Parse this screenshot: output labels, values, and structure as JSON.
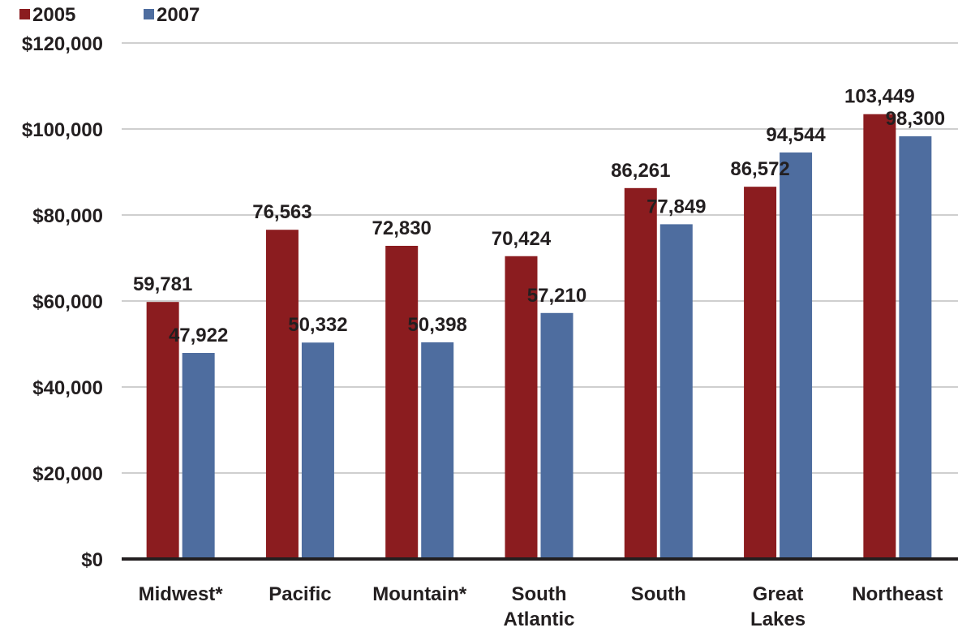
{
  "chart_data": {
    "type": "bar",
    "title": "",
    "xlabel": "",
    "ylabel": "",
    "categories": [
      [
        "Midwest*"
      ],
      [
        "Pacific"
      ],
      [
        "Mountain*"
      ],
      [
        "South",
        "Atlantic"
      ],
      [
        "South"
      ],
      [
        "Great",
        "Lakes"
      ],
      [
        "Northeast"
      ]
    ],
    "series": [
      {
        "name": "2005",
        "color": "#8b1c1f",
        "values": [
          59781,
          76563,
          72830,
          70424,
          86261,
          86572,
          103449
        ],
        "labels": [
          "59,781",
          "76,563",
          "72,830",
          "70,424",
          "86,261",
          "86,572",
          "103,449"
        ]
      },
      {
        "name": "2007",
        "color": "#4e6d9f",
        "values": [
          47922,
          50332,
          50398,
          57210,
          77849,
          94544,
          98300
        ],
        "labels": [
          "47,922",
          "50,332",
          "50,398",
          "57,210",
          "77,849",
          "94,544",
          "98,300"
        ]
      }
    ],
    "ylim": [
      0,
      120000
    ],
    "yticks": [
      0,
      20000,
      40000,
      60000,
      80000,
      100000,
      120000
    ],
    "ytick_labels": [
      "$0",
      "$20,000",
      "$40,000",
      "$60,000",
      "$80,000",
      "$100,000",
      "$120,000"
    ],
    "grid": true,
    "legend_position": "top-left"
  }
}
